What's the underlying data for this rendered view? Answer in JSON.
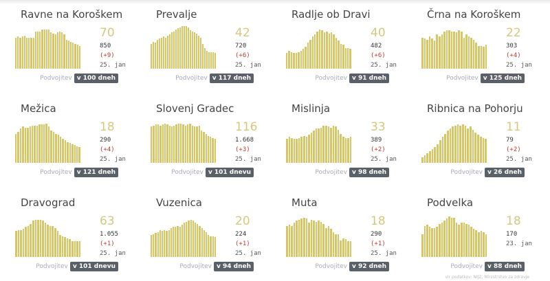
{
  "doubling_label": "Podvojitev",
  "footer": "vir podatkov: NIJZ, Ministrstvo za zdravje",
  "colors": {
    "bar": "#d8c563",
    "active": "#d6c77e",
    "increase": "#c0392b",
    "badge": "#5a6068"
  },
  "cards": [
    {
      "name": "Ravne na Koroškem",
      "active": "70",
      "total": "850",
      "increase": "(+9)",
      "date": "25. jan",
      "doubling": "v 100 dneh",
      "bars": [
        60,
        62,
        60,
        62,
        63,
        60,
        60,
        60,
        60,
        72,
        72,
        72,
        75,
        76,
        76,
        75,
        70,
        68,
        66,
        70,
        72,
        70,
        66,
        56,
        54,
        52,
        50,
        48,
        46,
        44
      ]
    },
    {
      "name": "Prevalje",
      "active": "42",
      "total": "720",
      "increase": "(+6)",
      "date": "25. jan",
      "doubling": "v 117 dneh",
      "bars": [
        48,
        52,
        50,
        56,
        58,
        60,
        62,
        60,
        64,
        66,
        70,
        72,
        76,
        78,
        80,
        82,
        82,
        82,
        80,
        74,
        72,
        70,
        68,
        64,
        60,
        48,
        40,
        34,
        32,
        32,
        32,
        30
      ]
    },
    {
      "name": "Radlje ob Dravi",
      "active": "40",
      "total": "482",
      "increase": "(+6)",
      "date": "25. jan",
      "doubling": "v 91 dneh",
      "bars": [
        30,
        34,
        32,
        30,
        30,
        32,
        34,
        38,
        42,
        50,
        56,
        62,
        66,
        72,
        76,
        74,
        70,
        72,
        68,
        70,
        66,
        60,
        54,
        48,
        46,
        40,
        40,
        38
      ]
    },
    {
      "name": "Črna na Koroškem",
      "active": "22",
      "total": "303",
      "increase": "(+4)",
      "date": "25. jan",
      "doubling": "v 125 dneh",
      "bars": [
        60,
        58,
        56,
        62,
        58,
        54,
        66,
        62,
        66,
        72,
        74,
        74,
        72,
        72,
        70,
        74,
        72,
        60,
        66,
        62,
        60,
        56,
        50,
        44,
        44,
        42,
        46
      ]
    },
    {
      "name": "Mežica",
      "active": "18",
      "total": "290",
      "increase": "(+4)",
      "date": "25. jan",
      "doubling": "v 121 dneh",
      "bars": [
        56,
        60,
        66,
        70,
        68,
        68,
        70,
        72,
        72,
        72,
        74,
        74,
        74,
        76,
        70,
        62,
        60,
        56,
        54,
        50,
        46,
        44,
        40,
        38,
        36,
        34,
        32,
        30
      ]
    },
    {
      "name": "Slovenj Gradec",
      "active": "116",
      "total": "1.668",
      "increase": "(+3)",
      "date": "25. jan",
      "doubling": "v 101 dnevu",
      "bars": [
        70,
        72,
        74,
        74,
        72,
        74,
        76,
        74,
        72,
        70,
        72,
        74,
        76,
        76,
        74,
        72,
        74,
        76,
        72,
        70,
        70,
        72,
        62,
        60,
        56,
        52,
        50,
        48,
        46
      ]
    },
    {
      "name": "Mislinja",
      "active": "33",
      "total": "389",
      "increase": "(+2)",
      "date": "25. jan",
      "doubling": "v 98 dneh",
      "bars": [
        46,
        50,
        48,
        46,
        46,
        48,
        50,
        52,
        50,
        54,
        58,
        62,
        66,
        66,
        68,
        72,
        72,
        70,
        68,
        72,
        70,
        64,
        56,
        50,
        48,
        48,
        50
      ]
    },
    {
      "name": "Ribnica na Pohorju",
      "active": "11",
      "total": "79",
      "increase": "(+2)",
      "date": "25. jan",
      "doubling": "v 26 dneh",
      "bars": [
        10,
        14,
        18,
        22,
        26,
        30,
        36,
        44,
        50,
        56,
        62,
        66,
        70,
        72,
        74,
        72,
        74,
        72,
        66,
        70,
        64,
        58,
        54,
        50,
        48,
        46
      ]
    },
    {
      "name": "Dravograd",
      "active": "63",
      "total": "1.055",
      "increase": "(+1)",
      "date": "25. jan",
      "doubling": "v 101 dnevu",
      "bars": [
        50,
        52,
        52,
        54,
        58,
        60,
        64,
        70,
        72,
        72,
        72,
        70,
        66,
        62,
        60,
        60,
        56,
        50,
        42,
        40,
        38,
        36,
        34,
        30,
        30,
        30,
        30
      ]
    },
    {
      "name": "Vuzenica",
      "active": "20",
      "total": "224",
      "increase": "(+1)",
      "date": "25. jan",
      "doubling": "v 94 dneh",
      "bars": [
        42,
        44,
        46,
        48,
        52,
        50,
        52,
        50,
        52,
        56,
        58,
        58,
        60,
        58,
        62,
        66,
        68,
        70,
        72,
        70,
        66,
        64,
        60,
        56,
        52,
        48,
        42,
        40,
        40,
        38
      ]
    },
    {
      "name": "Muta",
      "active": "18",
      "total": "290",
      "increase": "(+1)",
      "date": "25. jan",
      "doubling": "v 92 dneh",
      "bars": [
        60,
        62,
        60,
        66,
        70,
        72,
        74,
        76,
        74,
        66,
        72,
        70,
        68,
        70,
        68,
        64,
        56,
        60,
        54,
        48,
        44,
        44,
        32,
        36,
        34,
        30,
        30
      ]
    },
    {
      "name": "Podvelka",
      "active": "18",
      "total": "170",
      "increase": "",
      "date": "23. jan",
      "doubling": "v 88 dneh",
      "bars": [
        44,
        60,
        62,
        58,
        56,
        56,
        58,
        64,
        66,
        70,
        74,
        78,
        76,
        76,
        66,
        62,
        66,
        66,
        64,
        62,
        58,
        54,
        52,
        48,
        50,
        48,
        44
      ]
    }
  ]
}
